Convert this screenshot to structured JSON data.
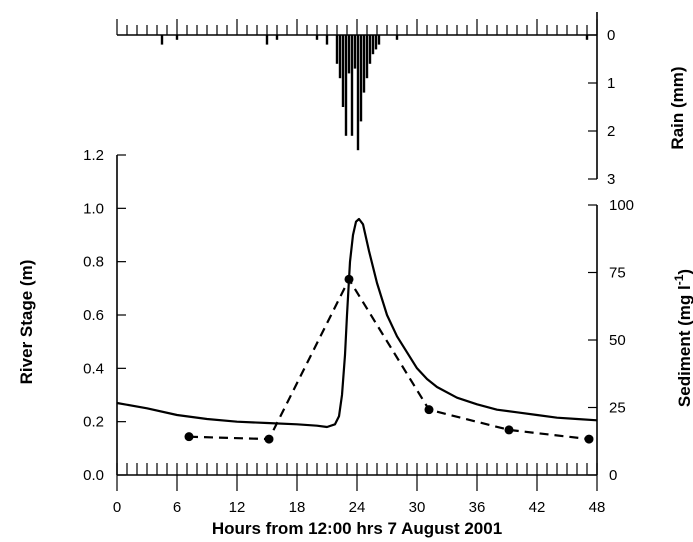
{
  "chart_data": [
    {
      "type": "bar",
      "name": "rain-hyetograph",
      "title": "",
      "xlabel": "",
      "ylabel": "Rain (mm)",
      "xlim": [
        0,
        48
      ],
      "ylim": [
        0,
        3
      ],
      "y_inverted": true,
      "y_axis_side": "right",
      "yticks": [
        0,
        1,
        2,
        3
      ],
      "ytick_labels": [
        "0",
        "1",
        "2",
        "3"
      ],
      "grid": false,
      "x": [
        4.5,
        6.0,
        15.0,
        16.0,
        20.0,
        21.0,
        22.0,
        22.3,
        22.6,
        22.9,
        23.2,
        23.5,
        23.8,
        24.1,
        24.4,
        24.7,
        25.0,
        25.3,
        25.6,
        25.9,
        26.2,
        28.0,
        47.0
      ],
      "values": [
        0.2,
        0.1,
        0.2,
        0.1,
        0.1,
        0.2,
        0.6,
        0.9,
        1.5,
        2.1,
        0.8,
        2.1,
        0.7,
        2.4,
        1.8,
        1.2,
        0.9,
        0.6,
        0.4,
        0.3,
        0.2,
        0.1,
        0.1
      ]
    },
    {
      "type": "line",
      "name": "stage-and-sediment",
      "title": "",
      "xlabel": "Hours from 12:00 hrs 7 August 2001",
      "ylabel": "River Stage (m)",
      "y2label": "Sediment (mg l-1)",
      "y2label_parts": {
        "base": "Sediment (mg l",
        "sup": "-1",
        "close": ")"
      },
      "xlim": [
        0,
        48
      ],
      "ylim": [
        0,
        1.2
      ],
      "y2lim": [
        0,
        100
      ],
      "xticks": [
        0,
        6,
        12,
        18,
        24,
        30,
        36,
        42,
        48
      ],
      "xtick_labels": [
        "0",
        "6",
        "12",
        "18",
        "24",
        "30",
        "36",
        "42",
        "48"
      ],
      "yticks": [
        0,
        0.2,
        0.4,
        0.6,
        0.8,
        1.0,
        1.2
      ],
      "ytick_labels": [
        "0.0",
        "0.2",
        "0.4",
        "0.6",
        "0.8",
        "1.0",
        "1.2"
      ],
      "y2ticks": [
        0,
        25,
        50,
        75,
        100
      ],
      "y2tick_labels": [
        "0",
        "25",
        "50",
        "75",
        "100"
      ],
      "grid": false,
      "legend": "none",
      "series": [
        {
          "style": "solid",
          "axis": "left",
          "x": [
            0,
            3,
            6,
            9,
            12,
            15,
            18,
            20,
            21,
            21.8,
            22.2,
            22.5,
            22.8,
            23.0,
            23.3,
            23.6,
            23.9,
            24.2,
            24.6,
            25.2,
            26,
            27,
            28,
            29,
            30,
            31,
            32,
            34,
            36,
            38,
            40,
            42,
            44,
            46,
            48
          ],
          "y": [
            0.27,
            0.25,
            0.225,
            0.21,
            0.2,
            0.195,
            0.19,
            0.185,
            0.18,
            0.19,
            0.22,
            0.3,
            0.45,
            0.6,
            0.8,
            0.9,
            0.95,
            0.96,
            0.94,
            0.84,
            0.72,
            0.6,
            0.52,
            0.46,
            0.4,
            0.36,
            0.33,
            0.29,
            0.265,
            0.245,
            0.235,
            0.225,
            0.215,
            0.21,
            0.205
          ]
        },
        {
          "style": "dashed",
          "axis": "right",
          "marker": "circle",
          "x": [
            7.2,
            15.2,
            23.2,
            31.2,
            39.2,
            47.2
          ],
          "y": [
            14.2,
            13.3,
            72.5,
            24.2,
            16.7,
            13.3
          ]
        }
      ]
    }
  ]
}
